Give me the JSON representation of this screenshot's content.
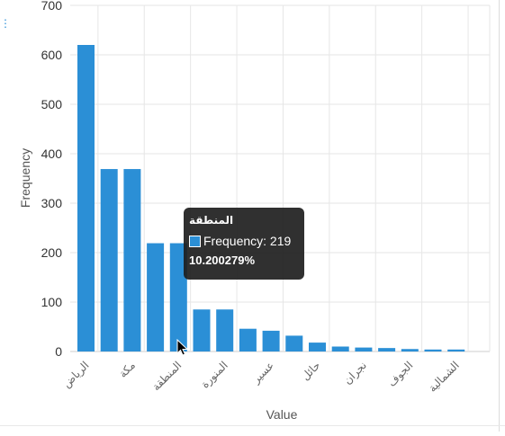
{
  "chart_data": {
    "type": "bar",
    "xlabel": "Value",
    "ylabel": "Frequency",
    "ylim": [
      0,
      700
    ],
    "yticks": [
      0,
      100,
      200,
      300,
      400,
      500,
      600,
      700
    ],
    "grid": true,
    "values": [
      620,
      369,
      369,
      219,
      219,
      85,
      85,
      46,
      42,
      32,
      18,
      10,
      8,
      7,
      5,
      4,
      4
    ],
    "tick_labels": [
      {
        "index": 0,
        "label": "الرياض"
      },
      {
        "index": 2,
        "label": "مكة"
      },
      {
        "index": 4,
        "label": "المنطقة"
      },
      {
        "index": 6,
        "label": "المنورة"
      },
      {
        "index": 8,
        "label": "عسير"
      },
      {
        "index": 10,
        "label": "حائل"
      },
      {
        "index": 12,
        "label": "نجران"
      },
      {
        "index": 14,
        "label": "الجوف"
      },
      {
        "index": 16,
        "label": "الشمالية"
      }
    ],
    "hovered_index": 4,
    "bar_color": "#2b8fd6"
  },
  "tooltip": {
    "title": "المنطقة",
    "series_label": "Frequency: 219",
    "percent": "10.200279%"
  },
  "ui": {
    "menu_icon": "vertical-ellipsis",
    "menu_glyph": "⋮"
  }
}
